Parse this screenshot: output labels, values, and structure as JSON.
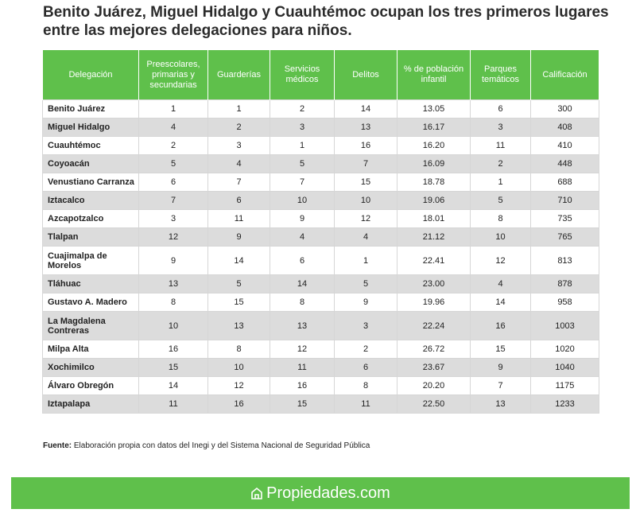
{
  "title": "Benito Juárez, Miguel Hidalgo y Cuauhtémoc ocupan los tres primeros lugares entre las mejores delegaciones para niños.",
  "chart_data": {
    "type": "table",
    "columns": [
      "Delegación",
      "Preescolares, primarias y secundarias",
      "Guarderías",
      "Servicios médicos",
      "Delitos",
      "% de población infantil",
      "Parques temáticos",
      "Calificación"
    ],
    "rows": [
      [
        "Benito Juárez",
        "1",
        "1",
        "2",
        "14",
        "13.05",
        "6",
        "300"
      ],
      [
        "Miguel Hidalgo",
        "4",
        "2",
        "3",
        "13",
        "16.17",
        "3",
        "408"
      ],
      [
        "Cuauhtémoc",
        "2",
        "3",
        "1",
        "16",
        "16.20",
        "11",
        "410"
      ],
      [
        "Coyoacán",
        "5",
        "4",
        "5",
        "7",
        "16.09",
        "2",
        "448"
      ],
      [
        "Venustiano Carranza",
        "6",
        "7",
        "7",
        "15",
        "18.78",
        "1",
        "688"
      ],
      [
        "Iztacalco",
        "7",
        "6",
        "10",
        "10",
        "19.06",
        "5",
        "710"
      ],
      [
        "Azcapotzalco",
        "3",
        "11",
        "9",
        "12",
        "18.01",
        "8",
        "735"
      ],
      [
        "Tlalpan",
        "12",
        "9",
        "4",
        "4",
        "21.12",
        "10",
        "765"
      ],
      [
        "Cuajimalpa de Morelos",
        "9",
        "14",
        "6",
        "1",
        "22.41",
        "12",
        "813"
      ],
      [
        "Tláhuac",
        "13",
        "5",
        "14",
        "5",
        "23.00",
        "4",
        "878"
      ],
      [
        "Gustavo A. Madero",
        "8",
        "15",
        "8",
        "9",
        "19.96",
        "14",
        "958"
      ],
      [
        "La Magdalena Contreras",
        "10",
        "13",
        "13",
        "3",
        "22.24",
        "16",
        "1003"
      ],
      [
        "Milpa Alta",
        "16",
        "8",
        "12",
        "2",
        "26.72",
        "15",
        "1020"
      ],
      [
        "Xochimilco",
        "15",
        "10",
        "11",
        "6",
        "23.67",
        "9",
        "1040"
      ],
      [
        "Álvaro Obregón",
        "14",
        "12",
        "16",
        "8",
        "20.20",
        "7",
        "1175"
      ],
      [
        "Iztapalapa",
        "11",
        "16",
        "15",
        "11",
        "22.50",
        "13",
        "1233"
      ]
    ]
  },
  "source": {
    "label": "Fuente:",
    "text": "Elaboración propia con datos del Inegi y del Sistema Nacional de Seguridad Pública"
  },
  "footer": {
    "brand": "Propiedades.com",
    "icon": "propiedades-logo-icon",
    "color": "#5fc04b"
  }
}
